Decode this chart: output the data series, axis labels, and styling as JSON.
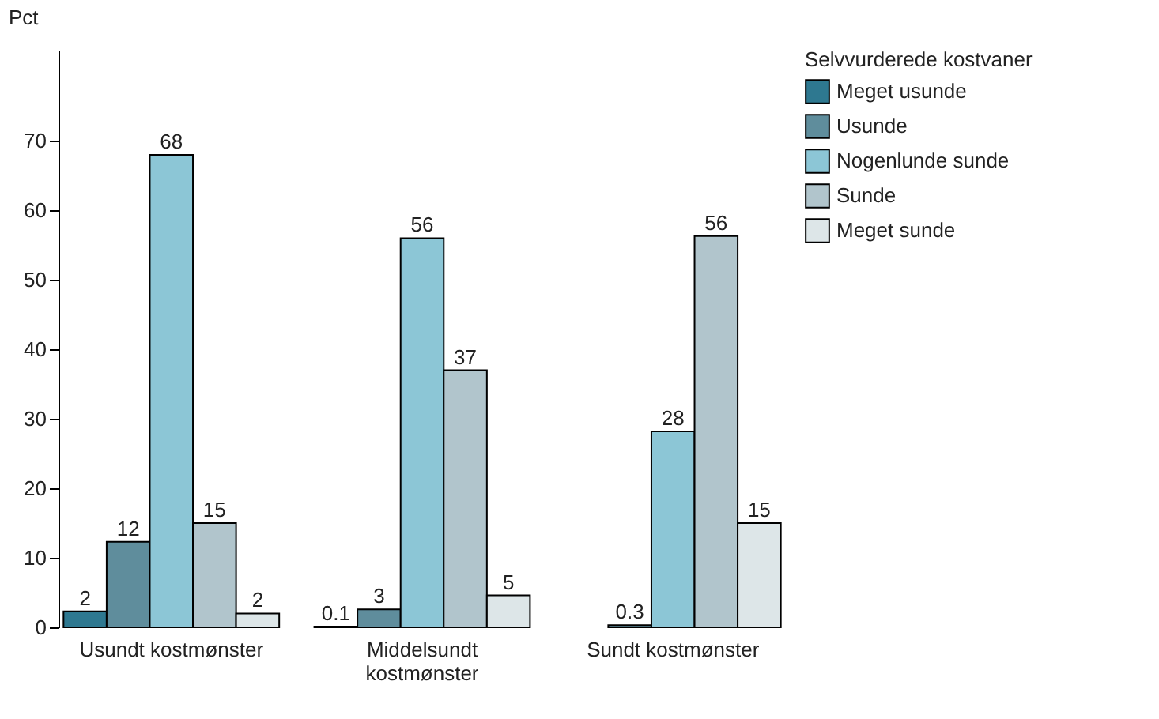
{
  "chart_data": {
    "type": "bar",
    "ylabel": "Pct",
    "legend_title": "Selvvurderede kostvaner",
    "legend": "right",
    "grid": false,
    "categories": [
      "Usundt kostmønster",
      "Middelsundt kostmønster",
      "Sundt kostmønster"
    ],
    "ylim": [
      0,
      83
    ],
    "yticks": [
      0,
      10,
      20,
      30,
      40,
      50,
      60,
      70
    ],
    "series": [
      {
        "name": "Meget usunde",
        "color": "#2e7890",
        "values": [
          2.3,
          0.1,
          null
        ],
        "value_labels": [
          "2",
          "0.1",
          null
        ]
      },
      {
        "name": "Usunde",
        "color": "#5f8d9c",
        "values": [
          12.3,
          2.6,
          0.3
        ],
        "value_labels": [
          "12",
          "3",
          "0.3"
        ]
      },
      {
        "name": "Nogenlunde sunde",
        "color": "#8cc6d6",
        "values": [
          68,
          56,
          28.2
        ],
        "value_labels": [
          "68",
          "56",
          "28"
        ]
      },
      {
        "name": "Sunde",
        "color": "#b1c5cc",
        "values": [
          15,
          37,
          56.3
        ],
        "value_labels": [
          "15",
          "37",
          "56"
        ]
      },
      {
        "name": "Meget sunde",
        "color": "#dde6e8",
        "values": [
          2,
          4.6,
          15
        ],
        "value_labels": [
          "2",
          "5",
          "15"
        ]
      }
    ]
  }
}
